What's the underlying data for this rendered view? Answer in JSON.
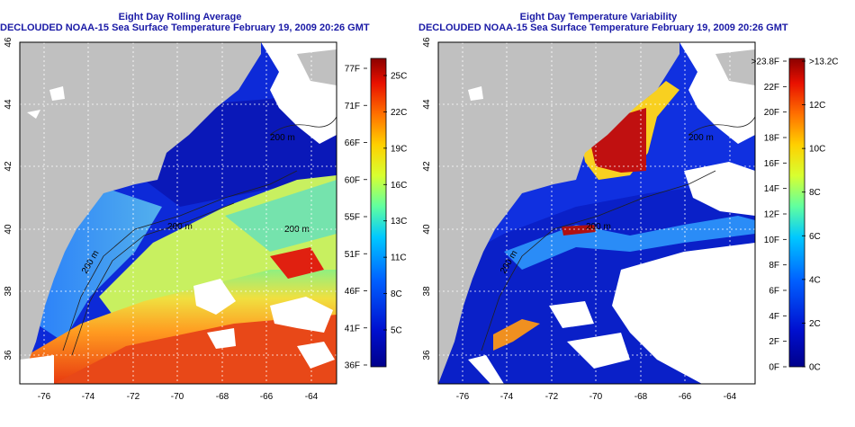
{
  "panels": [
    {
      "title_line1": "Eight Day Rolling Average",
      "title_line2": "DECLOUDED NOAA-15 Sea Surface Temperature February 19, 2009 20:26 GMT",
      "x_ticks": [
        "-76",
        "-74",
        "-72",
        "-70",
        "-68",
        "-66",
        "-64"
      ],
      "y_ticks": [
        "36",
        "38",
        "40",
        "42",
        "44",
        "46"
      ],
      "colorbar_left_labels": [
        "77F",
        "71F",
        "66F",
        "60F",
        "55F",
        "51F",
        "46F",
        "41F",
        "36F"
      ],
      "colorbar_right_labels": [
        "25C",
        "22C",
        "19C",
        "16C",
        "13C",
        "11C",
        "8C",
        "5C"
      ],
      "contour_labels": [
        "200 m",
        "200 m",
        "200 m",
        "200 m"
      ]
    },
    {
      "title_line1": "Eight Day Temperature Variability",
      "title_line2": "DECLOUDED NOAA-15 Sea Surface Temperature February 19, 2009 20:26 GMT",
      "x_ticks": [
        "-76",
        "-74",
        "-72",
        "-70",
        "-68",
        "-66",
        "-64"
      ],
      "y_ticks": [
        "36",
        "38",
        "40",
        "42",
        "44",
        "46"
      ],
      "colorbar_left_labels": [
        ">23.8F",
        "22F",
        "20F",
        "18F",
        "16F",
        "14F",
        "12F",
        "10F",
        "8F",
        "6F",
        "4F",
        "2F",
        "0F"
      ],
      "colorbar_right_labels": [
        ">13.2C",
        "12C",
        "10C",
        "8C",
        "6C",
        "4C",
        "2C",
        "0C"
      ],
      "contour_labels": [
        "200 m",
        "200 m",
        "200 m"
      ]
    }
  ],
  "colors": {
    "title": "#1a1aa6",
    "land": "#c0c0c0",
    "cold": "#0010a0",
    "warm": "#e03010",
    "cloud": "#ffffff"
  }
}
